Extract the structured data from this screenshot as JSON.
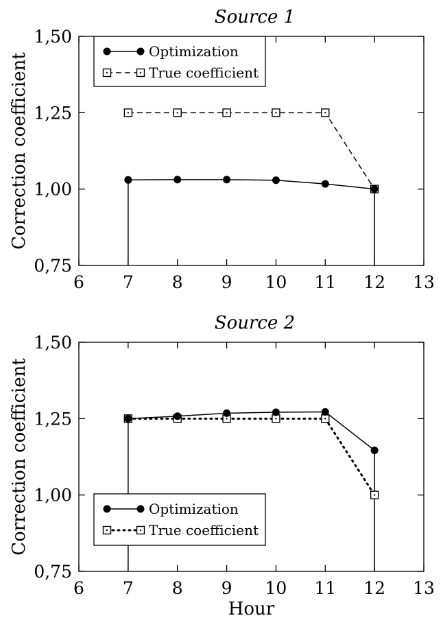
{
  "chart_data": [
    {
      "type": "line",
      "title": "Source 1",
      "xlabel": "",
      "ylabel": "Correction coefficient",
      "xlim": [
        6,
        13
      ],
      "ylim": [
        0.75,
        1.5
      ],
      "x_ticks": [
        "6",
        "7",
        "8",
        "9",
        "10",
        "11",
        "12",
        "13"
      ],
      "y_ticks": [
        "0,75",
        "1,00",
        "1,25",
        "1,50"
      ],
      "legend_position": "top-left",
      "grid": false,
      "series": [
        {
          "name": "Optimization",
          "style": "solid",
          "marker": "filled-circle",
          "x": [
            7,
            8,
            9,
            10,
            11,
            12
          ],
          "y": [
            1.03,
            1.031,
            1.031,
            1.029,
            1.017,
            1.0
          ]
        },
        {
          "name": "True coefficient",
          "style": "dashed",
          "marker": "open-square",
          "x": [
            7,
            8,
            9,
            10,
            11,
            12
          ],
          "y": [
            1.25,
            1.25,
            1.25,
            1.25,
            1.25,
            1.0
          ]
        }
      ],
      "interval_lines": [
        7,
        12
      ]
    },
    {
      "type": "line",
      "title": "Source 2",
      "xlabel": "Hour",
      "ylabel": "Correction coefficient",
      "xlim": [
        6,
        13
      ],
      "ylim": [
        0.75,
        1.5
      ],
      "x_ticks": [
        "6",
        "7",
        "8",
        "9",
        "10",
        "11",
        "12",
        "13"
      ],
      "y_ticks": [
        "0,75",
        "1,00",
        "1,25",
        "1,50"
      ],
      "legend_position": "bottom-left",
      "grid": false,
      "series": [
        {
          "name": "Optimization",
          "style": "solid",
          "marker": "filled-circle",
          "x": [
            7,
            8,
            9,
            10,
            11,
            12
          ],
          "y": [
            1.25,
            1.258,
            1.268,
            1.271,
            1.272,
            1.146
          ]
        },
        {
          "name": "True coefficient",
          "style": "dotted",
          "marker": "open-square",
          "x": [
            7,
            8,
            9,
            10,
            11,
            12
          ],
          "y": [
            1.25,
            1.25,
            1.25,
            1.25,
            1.25,
            1.0
          ]
        }
      ],
      "interval_lines": [
        7,
        12
      ]
    }
  ]
}
